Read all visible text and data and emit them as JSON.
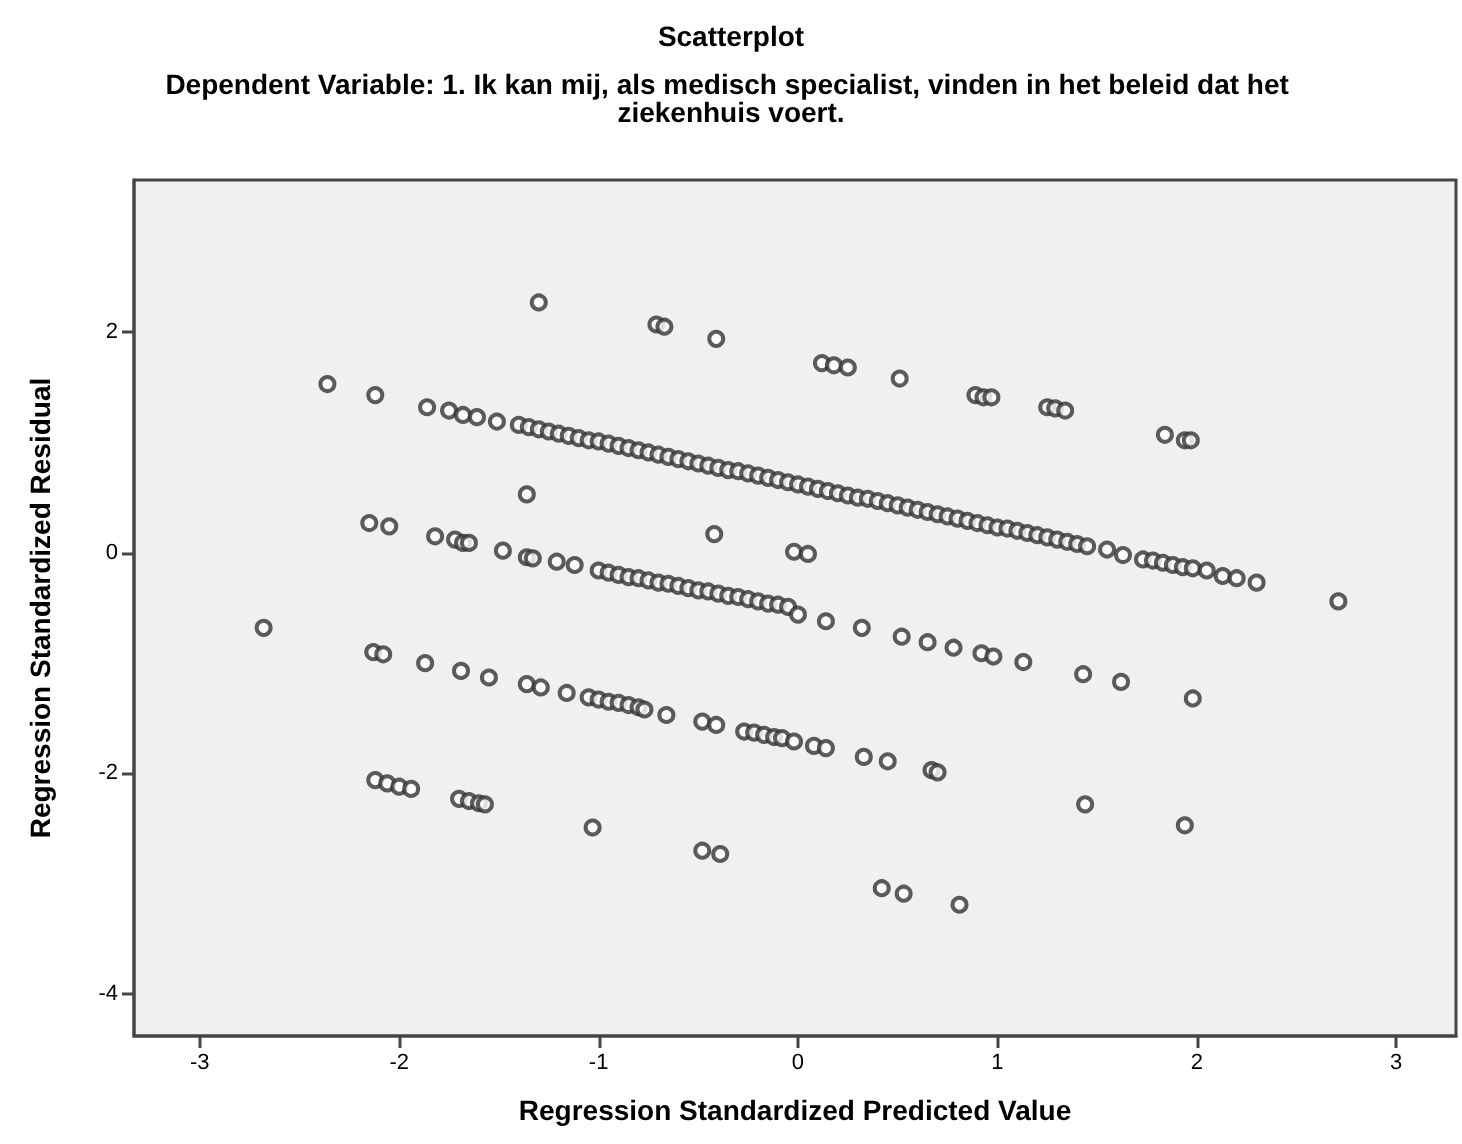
{
  "chart_data": {
    "type": "scatter",
    "title": "Scatterplot",
    "subtitle": "Dependent Variable: 1. Ik kan mij, als medisch specialist, vinden in het beleid dat het ziekenhuis voert.",
    "xlabel": "Regression Standardized Predicted Value",
    "ylabel": "Regression Standardized Residual",
    "xlim": [
      -3.33,
      3.3
    ],
    "ylim": [
      -4.38,
      3.38
    ],
    "xticks": [
      -3,
      -2,
      -1,
      0,
      1,
      2,
      3
    ],
    "yticks": [
      -4,
      -2,
      0,
      2
    ],
    "marker": "circle",
    "series": [
      {
        "color": "#333333",
        "x": [
          -1.3,
          -0.71,
          -0.67,
          -0.41,
          0.12,
          0.18,
          0.25,
          0.51,
          0.89,
          0.93,
          0.97,
          1.25,
          1.29,
          1.34,
          1.84,
          1.94,
          1.97,
          -2.36,
          -2.12,
          -1.86,
          -1.75,
          -1.68,
          -1.61,
          -1.51,
          -1.4,
          -1.35,
          -1.3,
          -1.25,
          -1.2,
          -1.15,
          -1.1,
          -1.05,
          -1.0,
          -0.95,
          -0.9,
          -0.85,
          -0.8,
          -0.75,
          -0.7,
          -0.65,
          -0.6,
          -0.55,
          -0.5,
          -0.45,
          -0.4,
          -0.35,
          -0.3,
          -0.25,
          -0.2,
          -0.15,
          -0.1,
          -0.05,
          0.0,
          0.05,
          0.1,
          0.15,
          0.2,
          0.25,
          0.3,
          0.35,
          0.4,
          0.45,
          0.5,
          0.55,
          0.6,
          0.65,
          0.7,
          0.75,
          0.8,
          0.85,
          0.9,
          0.95,
          1.0,
          1.05,
          1.1,
          1.15,
          1.2,
          1.25,
          1.3,
          1.35,
          1.4,
          1.45,
          1.55,
          1.63,
          1.73,
          1.78,
          1.83,
          1.88,
          1.93,
          1.98,
          2.05,
          2.13,
          2.2,
          2.3,
          2.71,
          -2.15,
          -2.05,
          -1.82,
          -1.72,
          -1.68,
          -1.65,
          -1.48,
          -1.36,
          -1.33,
          -1.21,
          -1.12,
          -1.0,
          -0.95,
          -0.9,
          -0.85,
          -0.8,
          -0.75,
          -0.7,
          -0.65,
          -0.6,
          -0.55,
          -0.5,
          -0.45,
          -0.4,
          -0.35,
          -0.3,
          -0.25,
          -0.2,
          -0.15,
          -0.1,
          -0.05,
          0.0,
          0.14,
          0.32,
          0.52,
          0.65,
          0.78,
          0.92,
          0.98,
          1.13,
          1.43,
          1.62,
          1.98,
          -1.36,
          -0.42,
          -0.02,
          0.05,
          -2.68,
          -2.13,
          -2.08,
          -1.87,
          -1.69,
          -1.55,
          -1.36,
          -1.29,
          -1.16,
          -1.05,
          -1.0,
          -0.95,
          -0.9,
          -0.85,
          -0.8,
          -0.77,
          -0.66,
          -0.48,
          -0.41,
          -0.27,
          -0.22,
          -0.17,
          -0.12,
          -0.08,
          -0.02,
          0.08,
          0.14,
          0.33,
          0.45,
          0.67,
          0.7,
          1.44,
          1.94,
          -2.12,
          -2.06,
          -2.0,
          -1.94,
          -1.7,
          -1.65,
          -1.6,
          -1.57,
          -1.03,
          -0.48,
          -0.39,
          0.42,
          0.53,
          0.81
        ],
        "values": [
          2.27,
          2.07,
          2.05,
          1.94,
          1.72,
          1.7,
          1.68,
          1.58,
          1.43,
          1.41,
          1.41,
          1.32,
          1.31,
          1.29,
          1.07,
          1.02,
          1.02,
          1.53,
          1.43,
          1.32,
          1.29,
          1.25,
          1.23,
          1.19,
          1.16,
          1.14,
          1.12,
          1.1,
          1.08,
          1.06,
          1.04,
          1.02,
          1.01,
          0.99,
          0.97,
          0.95,
          0.93,
          0.91,
          0.89,
          0.87,
          0.85,
          0.83,
          0.81,
          0.79,
          0.77,
          0.75,
          0.74,
          0.72,
          0.7,
          0.68,
          0.66,
          0.64,
          0.62,
          0.6,
          0.58,
          0.56,
          0.54,
          0.52,
          0.5,
          0.49,
          0.47,
          0.45,
          0.43,
          0.41,
          0.39,
          0.37,
          0.35,
          0.33,
          0.31,
          0.29,
          0.27,
          0.25,
          0.23,
          0.22,
          0.2,
          0.18,
          0.16,
          0.14,
          0.12,
          0.1,
          0.08,
          0.06,
          0.03,
          -0.02,
          -0.06,
          -0.07,
          -0.09,
          -0.11,
          -0.13,
          -0.14,
          -0.16,
          -0.21,
          -0.23,
          -0.27,
          -0.44,
          0.27,
          0.24,
          0.15,
          0.12,
          0.09,
          0.09,
          0.02,
          -0.04,
          -0.05,
          -0.08,
          -0.11,
          -0.16,
          -0.18,
          -0.2,
          -0.22,
          -0.23,
          -0.25,
          -0.27,
          -0.28,
          -0.3,
          -0.32,
          -0.34,
          -0.35,
          -0.37,
          -0.39,
          -0.4,
          -0.42,
          -0.44,
          -0.46,
          -0.47,
          -0.49,
          -0.56,
          -0.62,
          -0.68,
          -0.76,
          -0.81,
          -0.86,
          -0.91,
          -0.94,
          -0.99,
          -1.1,
          -1.17,
          -1.32,
          0.53,
          0.17,
          0.01,
          -0.01,
          -0.68,
          -0.9,
          -0.92,
          -1.0,
          -1.07,
          -1.13,
          -1.19,
          -1.22,
          -1.27,
          -1.31,
          -1.33,
          -1.35,
          -1.36,
          -1.38,
          -1.4,
          -1.42,
          -1.47,
          -1.53,
          -1.56,
          -1.62,
          -1.63,
          -1.65,
          -1.67,
          -1.68,
          -1.71,
          -1.75,
          -1.77,
          -1.85,
          -1.89,
          -1.97,
          -1.99,
          -2.28,
          -2.47,
          -2.06,
          -2.09,
          -2.12,
          -2.14,
          -2.23,
          -2.25,
          -2.27,
          -2.28,
          -2.49,
          -2.7,
          -2.73,
          -3.04,
          -3.09,
          -3.19
        ]
      }
    ]
  }
}
